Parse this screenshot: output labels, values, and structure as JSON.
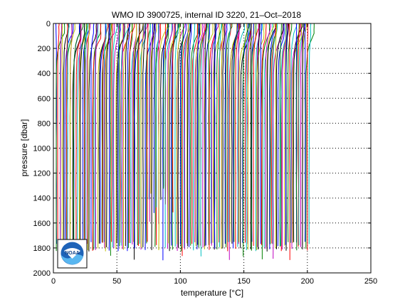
{
  "chart_data": {
    "type": "line",
    "title": "WMO ID 3900725, internal ID 3220, 21–Oct–2018",
    "xlabel": "temperature [°C]",
    "ylabel": "pressure [dbar]",
    "xlim": [
      0,
      250
    ],
    "ylim": [
      2000,
      0
    ],
    "y_reversed": true,
    "x_ticks": [
      0,
      50,
      100,
      150,
      200,
      250
    ],
    "y_ticks": [
      0,
      200,
      400,
      600,
      800,
      1000,
      1200,
      1400,
      1600,
      1800,
      2000
    ],
    "grid": "dotted",
    "profile_offset_per_cycle": 1.0,
    "profiles_count_approx": 200,
    "surface_temperature_range": [
      2,
      9
    ],
    "deep_temperature_range": [
      1,
      2.5
    ],
    "series_colors": [
      "#0000ff",
      "#008000",
      "#ff0000",
      "#00bfbf",
      "#bf00bf",
      "#bfbf00",
      "#000000"
    ]
  },
  "logo": {
    "name": "noaa-logo",
    "text": "NOAA"
  }
}
